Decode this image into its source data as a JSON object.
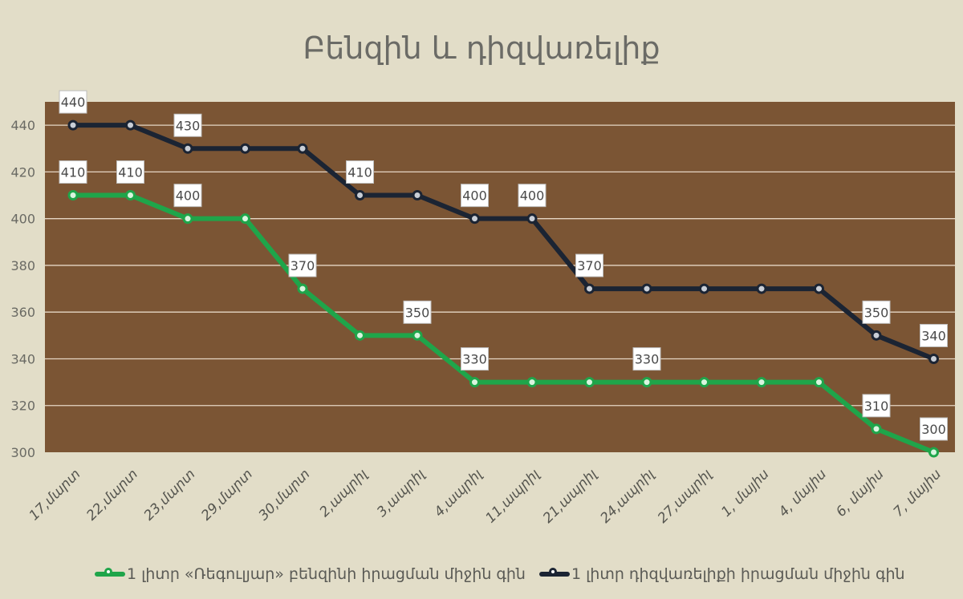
{
  "chart_data": {
    "type": "line",
    "title": "Բենզին և դիզվառելիք",
    "categories": [
      "17,մարտ",
      "22,մարտ",
      "23,մարտ",
      "29,մարտ",
      "30,մարտ",
      "2,ապրիլ",
      "3,ապրիլ",
      "4,ապրիլ",
      "11,ապրիլ",
      "21,ապրիլ",
      "24,ապրիլ",
      "27,ապրիլ",
      "1, մայիս",
      "4, մայիս",
      "6, մայիս",
      "7, մայիս"
    ],
    "ylim": [
      300,
      450
    ],
    "yticks": [
      300,
      320,
      340,
      360,
      380,
      400,
      420,
      440
    ],
    "grid": true,
    "legend_position": "bottom",
    "background": "#7b5534",
    "series": [
      {
        "name": "1 լիտր «Ռեգուլյար» բենզինի իրացման միջին գին",
        "color": "#1fa54a",
        "values": [
          410,
          410,
          400,
          400,
          370,
          350,
          350,
          330,
          330,
          330,
          330,
          330,
          330,
          330,
          310,
          300
        ],
        "labels": [
          "410",
          "410",
          "400",
          null,
          "370",
          null,
          "350",
          "330",
          null,
          null,
          "330",
          null,
          null,
          null,
          "310",
          "300"
        ]
      },
      {
        "name": "1 լիտր դիզվառելիքի  իրացման միջին գին",
        "color": "#1b2433",
        "values": [
          440,
          440,
          430,
          430,
          430,
          410,
          410,
          400,
          400,
          370,
          370,
          370,
          370,
          370,
          350,
          340
        ],
        "labels": [
          "440",
          null,
          "430",
          null,
          null,
          "410",
          null,
          "400",
          "400",
          "370",
          null,
          null,
          null,
          null,
          "350",
          "340"
        ]
      }
    ]
  }
}
